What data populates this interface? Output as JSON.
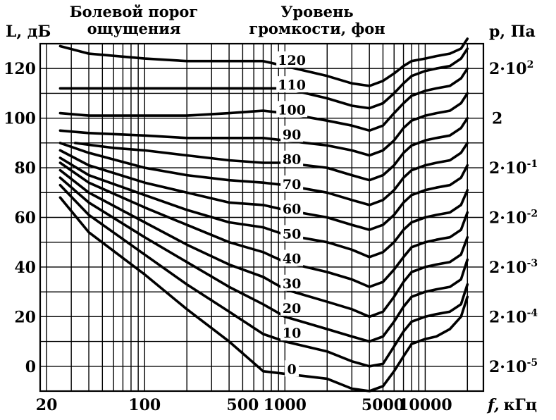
{
  "chart_data": {
    "type": "line",
    "title": "",
    "header_left": [
      "Болевой порог",
      "ощущения"
    ],
    "header_center": [
      "Уровень",
      "громкости, фон"
    ],
    "ylabel": "L, дБ",
    "ylabel_right": "p, Па",
    "xlabel_var": "f,",
    "xlabel_unit": "кГц",
    "x_scale": "log",
    "xlim": [
      18,
      26000
    ],
    "ylim": [
      -10,
      130
    ],
    "grid": true,
    "x_tick_labels": [
      {
        "value": 20,
        "label": "20"
      },
      {
        "value": 100,
        "label": "100"
      },
      {
        "value": 500,
        "label": "500"
      },
      {
        "value": 1000,
        "label": "1000"
      },
      {
        "value": 5000,
        "label": "5000"
      },
      {
        "value": 10000,
        "label": "10000"
      }
    ],
    "y_ticks": [
      0,
      20,
      40,
      60,
      80,
      100,
      120
    ],
    "y_tick_labels": [
      "0",
      "20",
      "40",
      "60",
      "80",
      "100",
      "120"
    ],
    "right_axis": [
      {
        "y": 120,
        "base": "2·10",
        "exp": "2"
      },
      {
        "y": 100,
        "base": "2",
        "exp": ""
      },
      {
        "y": 80,
        "base": "2·10",
        "exp": "-1"
      },
      {
        "y": 60,
        "base": "2·10",
        "exp": "-2"
      },
      {
        "y": 40,
        "base": "2·10",
        "exp": "-3"
      },
      {
        "y": 20,
        "base": "2·10",
        "exp": "-4"
      },
      {
        "y": 0,
        "base": "2·10",
        "exp": "-5"
      }
    ],
    "series": [
      {
        "name": "0",
        "label_at": [
          1120,
          -1
        ],
        "points": [
          [
            25,
            68
          ],
          [
            40,
            54
          ],
          [
            100,
            37
          ],
          [
            200,
            23
          ],
          [
            400,
            10
          ],
          [
            700,
            -2
          ],
          [
            1000,
            -3
          ],
          [
            2000,
            -5
          ],
          [
            3000,
            -9
          ],
          [
            4000,
            -10
          ],
          [
            5000,
            -8
          ],
          [
            6000,
            -2
          ],
          [
            7000,
            4
          ],
          [
            8000,
            9
          ],
          [
            10000,
            11
          ],
          [
            12000,
            12
          ],
          [
            15000,
            15
          ],
          [
            18000,
            20
          ],
          [
            20000,
            28
          ]
        ]
      },
      {
        "name": "10",
        "label_at": [
          1120,
          13.5
        ],
        "points": [
          [
            25,
            73
          ],
          [
            40,
            61
          ],
          [
            100,
            45
          ],
          [
            200,
            33
          ],
          [
            400,
            22
          ],
          [
            700,
            13
          ],
          [
            1000,
            10
          ],
          [
            2000,
            6
          ],
          [
            3000,
            2
          ],
          [
            4000,
            0
          ],
          [
            5000,
            1
          ],
          [
            6000,
            8
          ],
          [
            7000,
            14
          ],
          [
            8000,
            18
          ],
          [
            10000,
            20
          ],
          [
            12000,
            21
          ],
          [
            15000,
            22
          ],
          [
            18000,
            25
          ],
          [
            20000,
            33
          ]
        ]
      },
      {
        "name": "20",
        "label_at": [
          1120,
          23.5
        ],
        "points": [
          [
            25,
            76
          ],
          [
            40,
            66
          ],
          [
            100,
            52
          ],
          [
            200,
            42
          ],
          [
            400,
            32
          ],
          [
            700,
            25
          ],
          [
            1000,
            20
          ],
          [
            2000,
            15
          ],
          [
            3000,
            12
          ],
          [
            4000,
            10
          ],
          [
            5000,
            12
          ],
          [
            6000,
            18
          ],
          [
            7000,
            24
          ],
          [
            8000,
            28
          ],
          [
            10000,
            30
          ],
          [
            12000,
            31
          ],
          [
            15000,
            32
          ],
          [
            18000,
            35
          ],
          [
            20000,
            43
          ]
        ]
      },
      {
        "name": "30",
        "label_at": [
          1120,
          33.5
        ],
        "points": [
          [
            25,
            79
          ],
          [
            40,
            70
          ],
          [
            100,
            58
          ],
          [
            200,
            49
          ],
          [
            400,
            41
          ],
          [
            700,
            36
          ],
          [
            1000,
            31
          ],
          [
            2000,
            26
          ],
          [
            3000,
            23
          ],
          [
            4000,
            20
          ],
          [
            5000,
            22
          ],
          [
            6000,
            28
          ],
          [
            7000,
            34
          ],
          [
            8000,
            38
          ],
          [
            10000,
            40
          ],
          [
            12000,
            41
          ],
          [
            15000,
            42
          ],
          [
            18000,
            45
          ],
          [
            20000,
            52
          ]
        ]
      },
      {
        "name": "40",
        "label_at": [
          1120,
          43.5
        ],
        "points": [
          [
            25,
            82
          ],
          [
            40,
            74
          ],
          [
            100,
            64
          ],
          [
            200,
            57
          ],
          [
            400,
            50
          ],
          [
            700,
            46
          ],
          [
            1000,
            42
          ],
          [
            2000,
            38
          ],
          [
            3000,
            35
          ],
          [
            4000,
            32
          ],
          [
            5000,
            34
          ],
          [
            6000,
            39
          ],
          [
            7000,
            44
          ],
          [
            8000,
            48
          ],
          [
            10000,
            50
          ],
          [
            12000,
            51
          ],
          [
            15000,
            52
          ],
          [
            18000,
            55
          ],
          [
            20000,
            62
          ]
        ]
      },
      {
        "name": "50",
        "label_at": [
          1120,
          53.5
        ],
        "points": [
          [
            25,
            84
          ],
          [
            40,
            77
          ],
          [
            100,
            69
          ],
          [
            200,
            63
          ],
          [
            400,
            58
          ],
          [
            700,
            56
          ],
          [
            1000,
            53
          ],
          [
            2000,
            50
          ],
          [
            3000,
            47
          ],
          [
            4000,
            44
          ],
          [
            5000,
            46
          ],
          [
            6000,
            50
          ],
          [
            7000,
            55
          ],
          [
            8000,
            58
          ],
          [
            10000,
            60
          ],
          [
            12000,
            61
          ],
          [
            15000,
            62
          ],
          [
            18000,
            65
          ],
          [
            20000,
            71
          ]
        ]
      },
      {
        "name": "60",
        "label_at": [
          1120,
          63.5
        ],
        "points": [
          [
            25,
            87
          ],
          [
            40,
            81
          ],
          [
            100,
            74
          ],
          [
            200,
            70
          ],
          [
            400,
            66
          ],
          [
            700,
            65
          ],
          [
            1000,
            63
          ],
          [
            2000,
            60
          ],
          [
            3000,
            57
          ],
          [
            4000,
            55
          ],
          [
            5000,
            57
          ],
          [
            6000,
            61
          ],
          [
            7000,
            66
          ],
          [
            8000,
            69
          ],
          [
            10000,
            71
          ],
          [
            12000,
            72
          ],
          [
            15000,
            73
          ],
          [
            18000,
            76
          ],
          [
            20000,
            81
          ]
        ]
      },
      {
        "name": "70",
        "label_at": [
          1120,
          73.5
        ],
        "points": [
          [
            25,
            90
          ],
          [
            40,
            86
          ],
          [
            100,
            80
          ],
          [
            200,
            77
          ],
          [
            400,
            75
          ],
          [
            700,
            74
          ],
          [
            1000,
            73
          ],
          [
            2000,
            70
          ],
          [
            3000,
            67
          ],
          [
            4000,
            65
          ],
          [
            5000,
            67
          ],
          [
            6000,
            71
          ],
          [
            7000,
            76
          ],
          [
            8000,
            79
          ],
          [
            10000,
            81
          ],
          [
            12000,
            82
          ],
          [
            15000,
            83
          ],
          [
            18000,
            86
          ],
          [
            20000,
            90
          ]
        ]
      },
      {
        "name": "80",
        "label_at": [
          1120,
          83.5
        ],
        "points": [
          [
            32,
            90
          ],
          [
            60,
            88
          ],
          [
            100,
            87
          ],
          [
            200,
            85
          ],
          [
            400,
            83
          ],
          [
            700,
            82
          ],
          [
            1000,
            82
          ],
          [
            2000,
            80
          ],
          [
            3000,
            77
          ],
          [
            4000,
            75
          ],
          [
            5000,
            77
          ],
          [
            6000,
            81
          ],
          [
            7000,
            86
          ],
          [
            8000,
            89
          ],
          [
            10000,
            91
          ],
          [
            12000,
            92
          ],
          [
            15000,
            93
          ],
          [
            18000,
            96
          ],
          [
            20000,
            100
          ]
        ]
      },
      {
        "name": "90",
        "label_at": [
          1120,
          93.5
        ],
        "points": [
          [
            25,
            95
          ],
          [
            40,
            94
          ],
          [
            100,
            93
          ],
          [
            200,
            92
          ],
          [
            400,
            92
          ],
          [
            700,
            92
          ],
          [
            1000,
            91
          ],
          [
            2000,
            89
          ],
          [
            3000,
            87
          ],
          [
            4000,
            85
          ],
          [
            5000,
            87
          ],
          [
            6000,
            91
          ],
          [
            7000,
            96
          ],
          [
            8000,
            99
          ],
          [
            10000,
            101
          ],
          [
            12000,
            102
          ],
          [
            15000,
            103
          ],
          [
            18000,
            106
          ],
          [
            20000,
            110
          ]
        ]
      },
      {
        "name": "100",
        "label_at": [
          1120,
          103.5
        ],
        "points": [
          [
            25,
            102
          ],
          [
            40,
            101
          ],
          [
            100,
            101
          ],
          [
            200,
            101
          ],
          [
            400,
            102
          ],
          [
            700,
            103
          ],
          [
            1000,
            102
          ],
          [
            2000,
            99
          ],
          [
            3000,
            97
          ],
          [
            4000,
            95
          ],
          [
            5000,
            97
          ],
          [
            6000,
            102
          ],
          [
            7000,
            106
          ],
          [
            8000,
            109
          ],
          [
            10000,
            111
          ],
          [
            12000,
            112
          ],
          [
            15000,
            113
          ],
          [
            18000,
            116
          ],
          [
            20000,
            120
          ]
        ]
      },
      {
        "name": "110",
        "label_at": [
          1120,
          113.5
        ],
        "points": [
          [
            25,
            112
          ],
          [
            40,
            112
          ],
          [
            100,
            112
          ],
          [
            200,
            112
          ],
          [
            400,
            112
          ],
          [
            700,
            112
          ],
          [
            1000,
            112
          ],
          [
            2000,
            108
          ],
          [
            3000,
            105
          ],
          [
            4000,
            104
          ],
          [
            5000,
            106
          ],
          [
            6000,
            110
          ],
          [
            7000,
            114
          ],
          [
            8000,
            117
          ],
          [
            10000,
            119
          ],
          [
            12000,
            120
          ],
          [
            15000,
            121
          ],
          [
            18000,
            124
          ],
          [
            20000,
            128
          ]
        ]
      },
      {
        "name": "120",
        "label_at": [
          1120,
          123.5
        ],
        "points": [
          [
            25,
            129
          ],
          [
            40,
            126
          ],
          [
            100,
            124
          ],
          [
            200,
            123
          ],
          [
            400,
            123
          ],
          [
            700,
            123
          ],
          [
            1000,
            121
          ],
          [
            2000,
            117
          ],
          [
            3000,
            114
          ],
          [
            4000,
            113
          ],
          [
            5000,
            115
          ],
          [
            6000,
            118
          ],
          [
            7000,
            121
          ],
          [
            8000,
            123
          ],
          [
            10000,
            124
          ],
          [
            12000,
            125
          ],
          [
            15000,
            126
          ],
          [
            18000,
            128
          ],
          [
            20000,
            132
          ]
        ]
      }
    ]
  }
}
